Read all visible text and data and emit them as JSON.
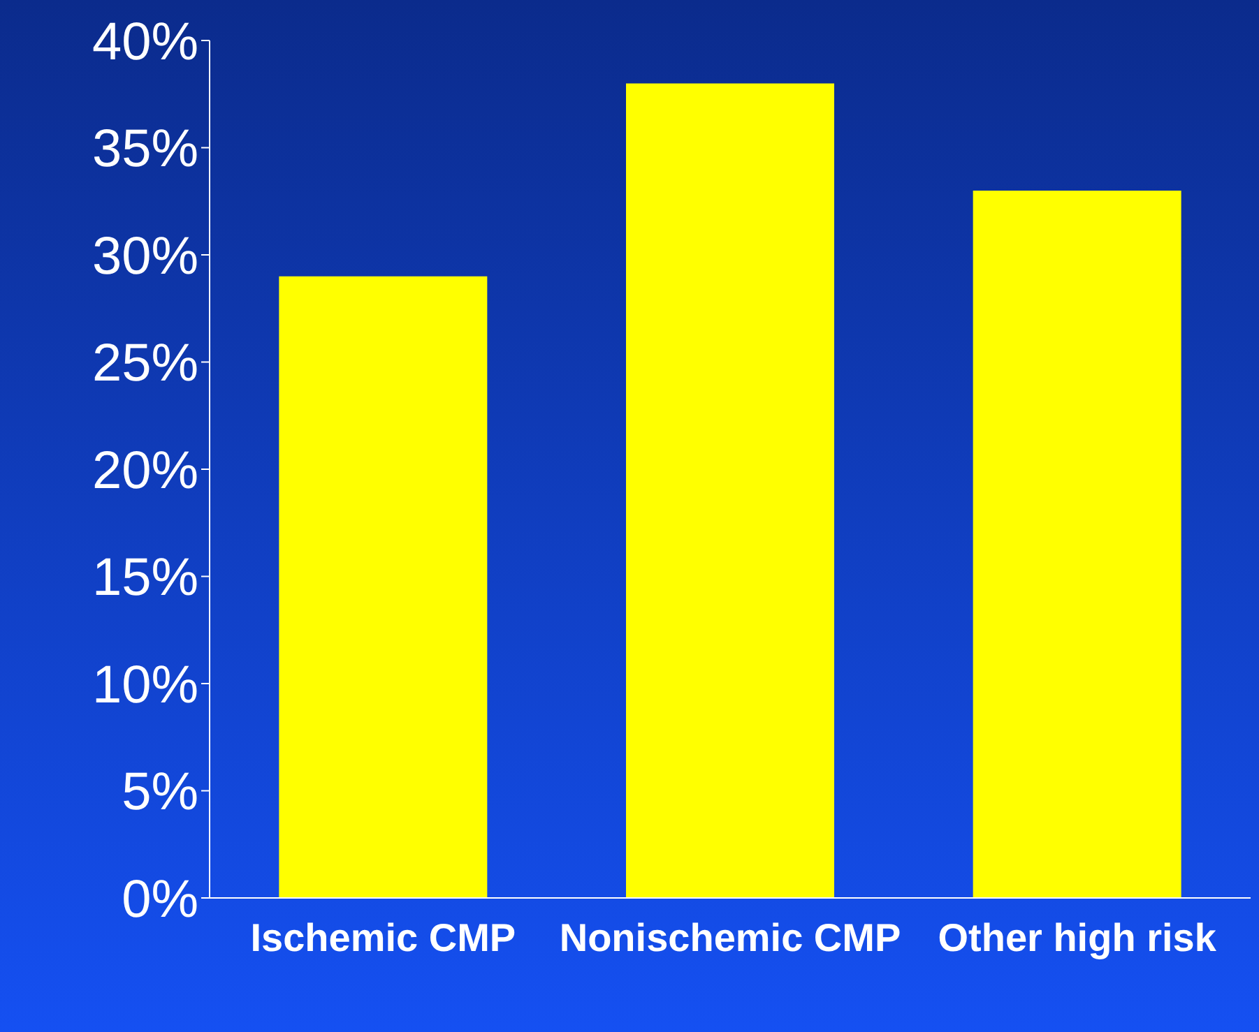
{
  "chart_data": {
    "type": "bar",
    "categories": [
      "Ischemic CMP",
      "Nonischemic CMP",
      "Other high risk"
    ],
    "values": [
      29,
      38,
      33
    ],
    "color": "#ffff00",
    "ylim": [
      0,
      40
    ],
    "yticks": [
      {
        "value": 0,
        "label": "0%"
      },
      {
        "value": 5,
        "label": "5%"
      },
      {
        "value": 10,
        "label": "10%"
      },
      {
        "value": 15,
        "label": "15%"
      },
      {
        "value": 20,
        "label": "20%"
      },
      {
        "value": 25,
        "label": "25%"
      },
      {
        "value": 30,
        "label": "30%"
      },
      {
        "value": 35,
        "label": "35%"
      },
      {
        "value": 40,
        "label": "40%"
      }
    ],
    "grid": false,
    "legend": false
  }
}
